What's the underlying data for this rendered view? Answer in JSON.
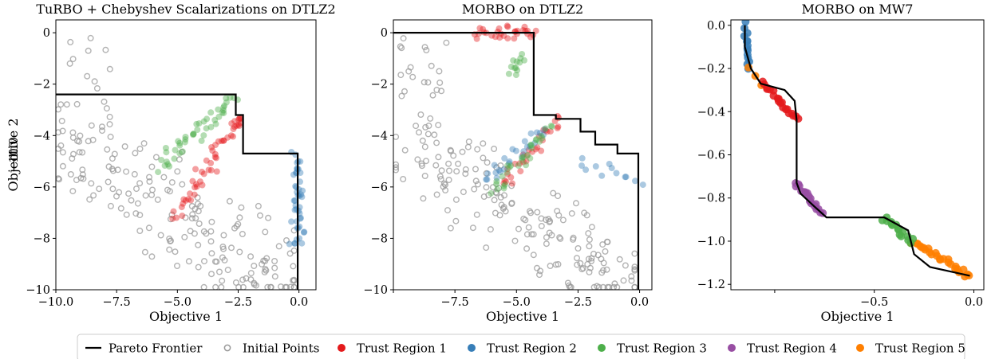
{
  "legend": {
    "items": [
      {
        "label": "Pareto Frontier",
        "kind": "line",
        "color": "#000000"
      },
      {
        "label": "Initial Points",
        "kind": "hollow",
        "color": "#999999"
      },
      {
        "label": "Trust Region 1",
        "kind": "dot",
        "color": "#e41a1c"
      },
      {
        "label": "Trust Region 2",
        "kind": "dot",
        "color": "#377eb8"
      },
      {
        "label": "Trust Region 3",
        "kind": "dot",
        "color": "#4daf4a"
      },
      {
        "label": "Trust Region 4",
        "kind": "dot",
        "color": "#984ea3"
      },
      {
        "label": "Trust Region 5",
        "kind": "dot",
        "color": "#ff7f00"
      }
    ]
  },
  "chart_data": [
    {
      "type": "scatter",
      "title": "TuRBO + Chebyshev Scalarizations on DTLZ2",
      "xlabel": "Objective 1",
      "ylabel": "Objective 2",
      "xlim": [
        -10,
        0.7
      ],
      "ylim": [
        -10,
        0.5
      ],
      "xticks": [
        -10,
        -7.5,
        -5,
        -2.5,
        0
      ],
      "xtick_labels": [
        "−10.0",
        "−7.5",
        "−5.0",
        "−2.5",
        "0.0"
      ],
      "yticks": [
        0,
        -2,
        -4,
        -6,
        -8,
        -10
      ],
      "ytick_labels": [
        "0",
        "−2",
        "−4",
        "−6",
        "−8",
        "−10"
      ],
      "pareto_frontier": [
        [
          -10,
          -2.4
        ],
        [
          -2.6,
          -2.4
        ],
        [
          -2.6,
          -3.2
        ],
        [
          -2.3,
          -3.2
        ],
        [
          -2.3,
          -4.7
        ],
        [
          -0.05,
          -4.7
        ],
        [
          -0.05,
          -10
        ]
      ],
      "initial_points_count": 200,
      "initial_points_region": "lower-left",
      "trust_regions": [
        {
          "region": "Trust Region 1",
          "segments": [
            [
              [
                -5.0,
                -7.2
              ],
              [
                -2.5,
                -3.4
              ],
              45
            ],
            [
              [
                -2.6,
                -3.6
              ],
              [
                -2.4,
                -3.1
              ],
              6
            ]
          ]
        },
        {
          "region": "Trust Region 2",
          "segments": [
            [
              [
                -0.05,
                -4.8
              ],
              [
                -0.05,
                -8.3
              ],
              45
            ]
          ]
        },
        {
          "region": "Trust Region 3",
          "segments": [
            [
              [
                -5.7,
                -5.2
              ],
              [
                -2.6,
                -2.5
              ],
              45
            ]
          ]
        }
      ]
    },
    {
      "type": "scatter",
      "title": "MORBO on DTLZ2",
      "xlabel": "Objective 1",
      "ylabel": "",
      "xlim": [
        -10,
        0.5
      ],
      "ylim": [
        -10,
        0.5
      ],
      "xticks": [
        -10,
        -7.5,
        -5,
        -2.5,
        0
      ],
      "xtick_labels": [
        "−10.0",
        "−7.5",
        "−5.0",
        "−2.5",
        "0.0"
      ],
      "yticks": [
        0,
        -2,
        -4,
        -6,
        -8,
        -10
      ],
      "ytick_labels": [
        "0",
        "−2",
        "−4",
        "−6",
        "−8",
        "−10"
      ],
      "pareto_frontier": [
        [
          -10,
          0
        ],
        [
          -4.3,
          0
        ],
        [
          -4.3,
          -3.2
        ],
        [
          -3.4,
          -3.2
        ],
        [
          -3.4,
          -3.35
        ],
        [
          -2.4,
          -3.35
        ],
        [
          -2.4,
          -3.85
        ],
        [
          -1.8,
          -3.85
        ],
        [
          -1.8,
          -4.35
        ],
        [
          -0.9,
          -4.35
        ],
        [
          -0.9,
          -4.7
        ],
        [
          -0.05,
          -4.7
        ],
        [
          -0.05,
          -10
        ]
      ],
      "initial_points_count": 200,
      "initial_points_region": "lower-left",
      "trust_regions": [
        {
          "region": "Trust Region 1",
          "segments": [
            [
              [
                -6.6,
                0.0
              ],
              [
                -4.3,
                0.0
              ],
              30
            ],
            [
              [
                -5.5,
                -6.0
              ],
              [
                -3.2,
                -3.3
              ],
              30
            ]
          ]
        },
        {
          "region": "Trust Region 2",
          "segments": [
            [
              [
                -6.3,
                -5.7
              ],
              [
                -3.8,
                -3.8
              ],
              25
            ],
            [
              [
                -2.5,
                -5.1
              ],
              [
                -0.05,
                -5.8
              ],
              12
            ]
          ]
        },
        {
          "region": "Trust Region 3",
          "segments": [
            [
              [
                -6.0,
                -6.2
              ],
              [
                -3.7,
                -3.7
              ],
              30
            ],
            [
              [
                -5.2,
                -1.5
              ],
              [
                -4.7,
                -0.9
              ],
              12
            ]
          ]
        }
      ]
    },
    {
      "type": "scatter",
      "title": "MORBO on MW7",
      "xlabel": "Objective 1",
      "ylabel": "",
      "xlim": [
        -1.22,
        0.05
      ],
      "ylim": [
        -1.225,
        0.025
      ],
      "xticks": [
        -1.0,
        -0.5,
        0.0
      ],
      "xtick_labels": [
        "−1.0",
        "−0.5",
        "0.0"
      ],
      "yticks": [
        0.0,
        -0.2,
        -0.4,
        -0.6,
        -0.8,
        -1.0,
        -1.2
      ],
      "ytick_labels": [
        "0.0",
        "−0.2",
        "−0.4",
        "−0.6",
        "−0.8",
        "−1.0",
        "−1.2"
      ],
      "pareto_frontier": [
        [
          -1.15,
          0.0
        ],
        [
          -1.15,
          -0.1
        ],
        [
          -1.12,
          -0.2
        ],
        [
          -1.07,
          -0.27
        ],
        [
          -0.95,
          -0.3
        ],
        [
          -0.9,
          -0.35
        ],
        [
          -0.89,
          -0.44
        ],
        [
          -0.89,
          -0.73
        ],
        [
          -0.87,
          -0.78
        ],
        [
          -0.8,
          -0.84
        ],
        [
          -0.74,
          -0.89
        ],
        [
          -0.45,
          -0.89
        ],
        [
          -0.33,
          -0.95
        ],
        [
          -0.3,
          -1.06
        ],
        [
          -0.22,
          -1.12
        ],
        [
          -0.02,
          -1.16
        ]
      ],
      "trust_regions": [
        {
          "region": "Trust Region 2",
          "segments": [
            [
              [
                -1.15,
                0.0
              ],
              [
                -1.13,
                -0.2
              ],
              14
            ]
          ]
        },
        {
          "region": "Trust Region 5",
          "segments": [
            [
              [
                -1.12,
                -0.21
              ],
              [
                -1.07,
                -0.27
              ],
              3
            ],
            [
              [
                -0.31,
                -1.0
              ],
              [
                -0.02,
                -1.16
              ],
              26
            ]
          ]
        },
        {
          "region": "Trust Region 1",
          "segments": [
            [
              [
                -1.06,
                -0.27
              ],
              [
                -0.89,
                -0.44
              ],
              20
            ]
          ]
        },
        {
          "region": "Trust Region 4",
          "segments": [
            [
              [
                -0.9,
                -0.73
              ],
              [
                -0.76,
                -0.87
              ],
              18
            ]
          ]
        },
        {
          "region": "Trust Region 3",
          "segments": [
            [
              [
                -0.45,
                -0.89
              ],
              [
                -0.31,
                -1.0
              ],
              16
            ]
          ]
        }
      ]
    }
  ]
}
